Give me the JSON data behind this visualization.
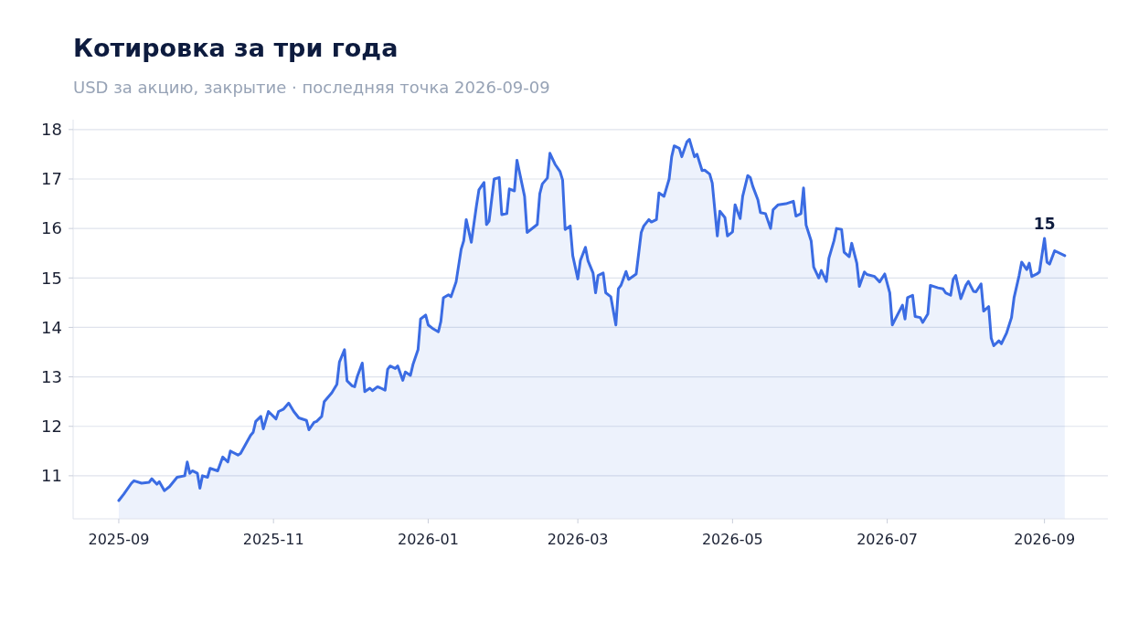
{
  "chart_data": {
    "type": "area",
    "title": "Котировка за три года",
    "subtitle": "USD за акцию, закрытие · последняя точка 2026-09-09",
    "x": [
      "2025-09-01",
      "2025-09-03",
      "2025-09-06",
      "2025-09-07",
      "2025-09-10",
      "2025-09-13",
      "2025-09-14",
      "2025-09-16",
      "2025-09-17",
      "2025-09-19",
      "2025-09-21",
      "2025-09-24",
      "2025-09-27",
      "2025-09-28",
      "2025-09-29",
      "2025-09-30",
      "2025-10-02",
      "2025-10-03",
      "2025-10-04",
      "2025-10-06",
      "2025-10-07",
      "2025-10-10",
      "2025-10-12",
      "2025-10-14",
      "2025-10-15",
      "2025-10-18",
      "2025-10-19",
      "2025-10-23",
      "2025-10-24",
      "2025-10-25",
      "2025-10-27",
      "2025-10-28",
      "2025-10-30",
      "2025-11-02",
      "2025-11-03",
      "2025-11-05",
      "2025-11-07",
      "2025-11-09",
      "2025-11-11",
      "2025-11-14",
      "2025-11-15",
      "2025-11-17",
      "2025-11-18",
      "2025-11-20",
      "2025-11-21",
      "2025-11-24",
      "2025-11-26",
      "2025-11-27",
      "2025-11-29",
      "2025-11-30",
      "2025-12-02",
      "2025-12-03",
      "2025-12-04",
      "2025-12-06",
      "2025-12-07",
      "2025-12-09",
      "2025-12-10",
      "2025-12-12",
      "2025-12-13",
      "2025-12-15",
      "2025-12-16",
      "2025-12-17",
      "2025-12-19",
      "2025-12-20",
      "2025-12-22",
      "2025-12-23",
      "2025-12-25",
      "2025-12-26",
      "2025-12-28",
      "2025-12-29",
      "2025-12-31",
      "2026-01-01",
      "2026-01-03",
      "2026-01-05",
      "2026-01-06",
      "2026-01-07",
      "2026-01-09",
      "2026-01-10",
      "2026-01-12",
      "2026-01-14",
      "2026-01-15",
      "2026-01-16",
      "2026-01-18",
      "2026-01-20",
      "2026-01-21",
      "2026-01-23",
      "2026-01-24",
      "2026-01-25",
      "2026-01-27",
      "2026-01-29",
      "2026-01-30",
      "2026-02-01",
      "2026-02-02",
      "2026-02-04",
      "2026-02-05",
      "2026-02-08",
      "2026-02-09",
      "2026-02-13",
      "2026-02-14",
      "2026-02-15",
      "2026-02-17",
      "2026-02-18",
      "2026-02-20",
      "2026-02-22",
      "2026-02-23",
      "2026-02-24",
      "2026-02-26",
      "2026-02-27",
      "2026-03-01",
      "2026-03-02",
      "2026-03-04",
      "2026-03-05",
      "2026-03-07",
      "2026-03-08",
      "2026-03-09",
      "2026-03-11",
      "2026-03-12",
      "2026-03-14",
      "2026-03-16",
      "2026-03-17",
      "2026-03-18",
      "2026-03-20",
      "2026-03-21",
      "2026-03-24",
      "2026-03-26",
      "2026-03-27",
      "2026-03-29",
      "2026-03-30",
      "2026-04-01",
      "2026-04-02",
      "2026-04-04",
      "2026-04-06",
      "2026-04-07",
      "2026-04-08",
      "2026-04-10",
      "2026-04-11",
      "2026-04-13",
      "2026-04-14",
      "2026-04-16",
      "2026-04-17",
      "2026-04-19",
      "2026-04-20",
      "2026-04-22",
      "2026-04-23",
      "2026-04-25",
      "2026-04-26",
      "2026-04-28",
      "2026-04-29",
      "2026-05-01",
      "2026-05-02",
      "2026-05-04",
      "2026-05-05",
      "2026-05-07",
      "2026-05-08",
      "2026-05-09",
      "2026-05-11",
      "2026-05-12",
      "2026-05-14",
      "2026-05-16",
      "2026-05-17",
      "2026-05-19",
      "2026-05-22",
      "2026-05-25",
      "2026-05-26",
      "2026-05-28",
      "2026-05-29",
      "2026-05-30",
      "2026-06-01",
      "2026-06-02",
      "2026-06-04",
      "2026-06-05",
      "2026-06-07",
      "2026-06-08",
      "2026-06-10",
      "2026-06-11",
      "2026-06-13",
      "2026-06-14",
      "2026-06-16",
      "2026-06-17",
      "2026-06-19",
      "2026-06-20",
      "2026-06-22",
      "2026-06-23",
      "2026-06-26",
      "2026-06-28",
      "2026-06-29",
      "2026-06-30",
      "2026-07-02",
      "2026-07-03",
      "2026-07-05",
      "2026-07-07",
      "2026-07-08",
      "2026-07-09",
      "2026-07-11",
      "2026-07-12",
      "2026-07-14",
      "2026-07-15",
      "2026-07-17",
      "2026-07-18",
      "2026-07-21",
      "2026-07-23",
      "2026-07-24",
      "2026-07-26",
      "2026-07-27",
      "2026-07-28",
      "2026-07-30",
      "2026-08-01",
      "2026-08-02",
      "2026-08-04",
      "2026-08-05",
      "2026-08-07",
      "2026-08-08",
      "2026-08-10",
      "2026-08-11",
      "2026-08-12",
      "2026-08-14",
      "2026-08-15",
      "2026-08-17",
      "2026-08-19",
      "2026-08-20",
      "2026-08-22",
      "2026-08-23",
      "2026-08-25",
      "2026-08-26",
      "2026-08-27",
      "2026-08-29",
      "2026-08-30",
      "2026-09-01",
      "2026-09-02",
      "2026-09-03",
      "2026-09-05",
      "2026-09-09"
    ],
    "series": [
      {
        "color": "#3b6ce3",
        "values": [
          10.5,
          10.63,
          10.85,
          10.9,
          10.85,
          10.87,
          10.94,
          10.83,
          10.88,
          10.7,
          10.78,
          10.97,
          11.0,
          11.28,
          11.05,
          11.1,
          11.05,
          10.75,
          11.0,
          10.97,
          11.15,
          11.1,
          11.38,
          11.28,
          11.5,
          11.42,
          11.45,
          11.82,
          11.88,
          12.1,
          12.2,
          11.95,
          12.3,
          12.15,
          12.3,
          12.35,
          12.47,
          12.3,
          12.17,
          12.12,
          11.93,
          12.08,
          12.1,
          12.2,
          12.5,
          12.68,
          12.85,
          13.3,
          13.55,
          12.92,
          12.82,
          12.8,
          13.0,
          13.28,
          12.7,
          12.77,
          12.72,
          12.8,
          12.78,
          12.73,
          13.15,
          13.22,
          13.17,
          13.22,
          12.93,
          13.1,
          13.03,
          13.25,
          13.55,
          14.17,
          14.25,
          14.05,
          13.97,
          13.91,
          14.12,
          14.6,
          14.66,
          14.62,
          14.92,
          15.58,
          15.75,
          16.18,
          15.72,
          16.45,
          16.78,
          16.93,
          16.08,
          16.15,
          17.0,
          17.03,
          16.28,
          16.3,
          16.8,
          16.76,
          17.38,
          16.65,
          15.92,
          16.08,
          16.7,
          16.9,
          17.02,
          17.52,
          17.3,
          17.15,
          16.98,
          15.98,
          16.05,
          15.45,
          14.98,
          15.35,
          15.62,
          15.35,
          15.1,
          14.7,
          15.05,
          15.1,
          14.7,
          14.62,
          14.05,
          14.78,
          14.85,
          15.13,
          14.97,
          15.08,
          15.92,
          16.05,
          16.18,
          16.13,
          16.18,
          16.72,
          16.65,
          17.0,
          17.45,
          17.67,
          17.62,
          17.45,
          17.75,
          17.8,
          17.45,
          17.5,
          17.17,
          17.18,
          17.1,
          16.92,
          15.85,
          16.35,
          16.22,
          15.85,
          15.93,
          16.48,
          16.2,
          16.65,
          17.07,
          17.03,
          16.85,
          16.58,
          16.32,
          16.3,
          16.0,
          16.38,
          16.48,
          16.5,
          16.55,
          16.25,
          16.3,
          16.82,
          16.07,
          15.75,
          15.22,
          15.0,
          15.15,
          14.93,
          15.4,
          15.75,
          16.0,
          15.98,
          15.52,
          15.43,
          15.7,
          15.3,
          14.83,
          15.12,
          15.07,
          15.03,
          14.92,
          15.0,
          15.08,
          14.7,
          14.05,
          14.25,
          14.45,
          14.17,
          14.6,
          14.65,
          14.22,
          14.2,
          14.1,
          14.27,
          14.85,
          14.8,
          14.78,
          14.7,
          14.65,
          14.97,
          15.05,
          14.58,
          14.85,
          14.93,
          14.73,
          14.72,
          14.88,
          14.33,
          14.42,
          13.78,
          13.63,
          13.73,
          13.67,
          13.88,
          14.2,
          14.6,
          15.05,
          15.32,
          15.17,
          15.3,
          15.03,
          15.08,
          15.12,
          15.8,
          15.32,
          15.28,
          15.55,
          15.45
        ]
      }
    ],
    "xlim": [
      "2025-08-14",
      "2026-09-26"
    ],
    "xticks": [
      {
        "value": "2025-09-01",
        "label": "2025-09"
      },
      {
        "value": "2025-11-01",
        "label": "2025-11"
      },
      {
        "value": "2026-01-01",
        "label": "2026-01"
      },
      {
        "value": "2026-03-01",
        "label": "2026-03"
      },
      {
        "value": "2026-05-01",
        "label": "2026-05"
      },
      {
        "value": "2026-07-01",
        "label": "2026-07"
      },
      {
        "value": "2026-09-01",
        "label": "2026-09"
      }
    ],
    "ylim": [
      10.13,
      18.2
    ],
    "yticks": [
      11,
      12,
      13,
      14,
      15,
      16,
      17,
      18
    ],
    "grid": "y",
    "annotations": [
      {
        "text": "15",
        "x": "2026-09-01",
        "y": 15.8
      }
    ]
  }
}
